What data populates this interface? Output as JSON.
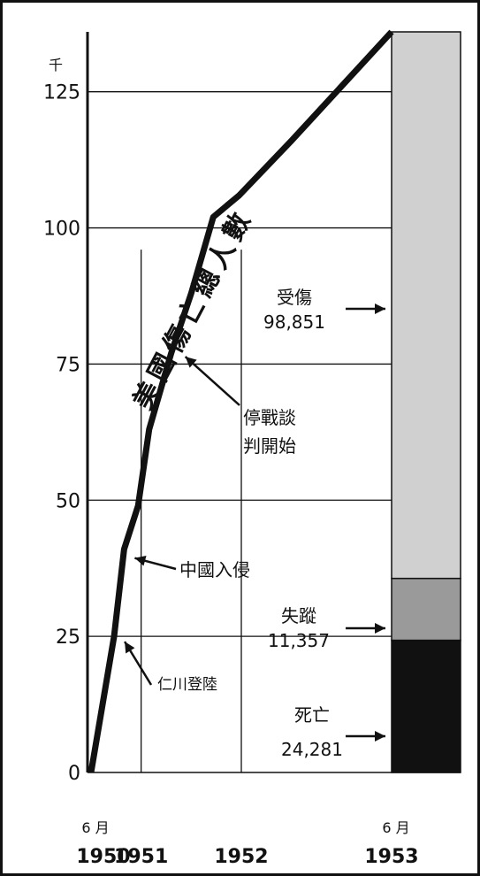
{
  "chart_data": {
    "type": "line",
    "title": "美國傷亡總人數",
    "ylabel": "千",
    "ylim": [
      0,
      136
    ],
    "yticks": [
      0,
      25,
      50,
      75,
      100,
      125
    ],
    "grid": true,
    "xticks": [
      {
        "x": 1950.5,
        "year": "1950",
        "month": "6 月"
      },
      {
        "x": 1951.0,
        "year": "1951",
        "month": ""
      },
      {
        "x": 1952.0,
        "year": "1952",
        "month": ""
      },
      {
        "x": 1953.5,
        "year": "1953",
        "month": "6 月"
      }
    ],
    "xlim": [
      1950.5,
      1953.5
    ],
    "series": [
      {
        "name": "美國傷亡總人數",
        "x": [
          1950.5,
          1950.73,
          1950.83,
          1950.97,
          1951.08,
          1951.3,
          1951.5,
          1951.72,
          1951.98,
          1952.5,
          1953.05,
          1953.5
        ],
        "y": [
          0,
          25,
          41,
          49,
          63,
          77,
          88,
          102,
          106,
          116,
          127,
          136
        ]
      }
    ],
    "stacked_bar": {
      "total_max": 136,
      "segments": [
        {
          "label": "死亡",
          "value": "24,281",
          "amount": 24.281,
          "color": "#111111"
        },
        {
          "label": "失蹤",
          "value": "11,357",
          "amount": 11.357,
          "color": "#9a9a9a"
        },
        {
          "label": "受傷",
          "value": "98,851",
          "amount": 98.851,
          "color": "#d0d0d0"
        }
      ]
    },
    "annotations": [
      {
        "text": "仁川登陸",
        "x": 1950.73,
        "y": 25
      },
      {
        "text": "中國入侵",
        "x": 1950.83,
        "y": 41
      },
      {
        "lines": [
          "停戰談",
          "判開始"
        ],
        "x": 1951.3,
        "y": 77
      }
    ]
  }
}
